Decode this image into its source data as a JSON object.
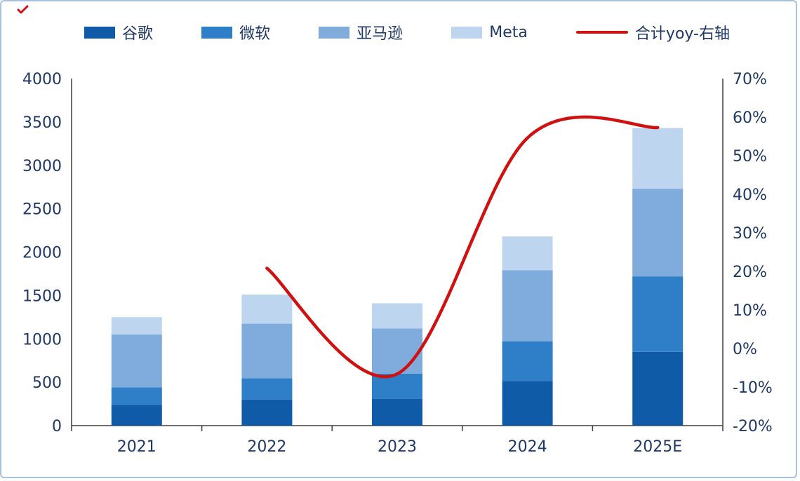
{
  "chart_data": {
    "type": "bar",
    "subtype": "stacked-bar-with-line",
    "title": "",
    "categories": [
      "2021",
      "2022",
      "2023",
      "2024",
      "2025E"
    ],
    "series": [
      {
        "name": "谷歌",
        "color": "#0F5BA8",
        "values": [
          240,
          300,
          310,
          515,
          850
        ]
      },
      {
        "name": "微软",
        "color": "#2E7FC8",
        "values": [
          200,
          245,
          290,
          455,
          870
        ]
      },
      {
        "name": "亚马逊",
        "color": "#7FACDC",
        "values": [
          610,
          630,
          520,
          820,
          1010
        ]
      },
      {
        "name": "Meta",
        "color": "#BDD5EE",
        "values": [
          200,
          335,
          290,
          390,
          700
        ]
      }
    ],
    "stack_totals": [
      1250,
      1510,
      1410,
      2180,
      3430
    ],
    "line": {
      "name": "合计yoy-右轴",
      "color": "#CF1211",
      "axis": "right",
      "categories": [
        "2022",
        "2023",
        "2024",
        "2025E"
      ],
      "values_percent": [
        20.8,
        -6.6,
        54.6,
        57.3
      ]
    },
    "left_axis": {
      "min": 0,
      "max": 4000,
      "step": 500
    },
    "right_axis": {
      "min": -20,
      "max": 70,
      "step": 10,
      "format": "percent"
    },
    "legend_position": "top",
    "grid": false
  },
  "colors": {
    "text": "#1F3864",
    "axis_line": "#3F3F3F",
    "background": "#FFFFFF",
    "frame_border": "#A6C1DC",
    "corner_mark": "#D01212"
  }
}
